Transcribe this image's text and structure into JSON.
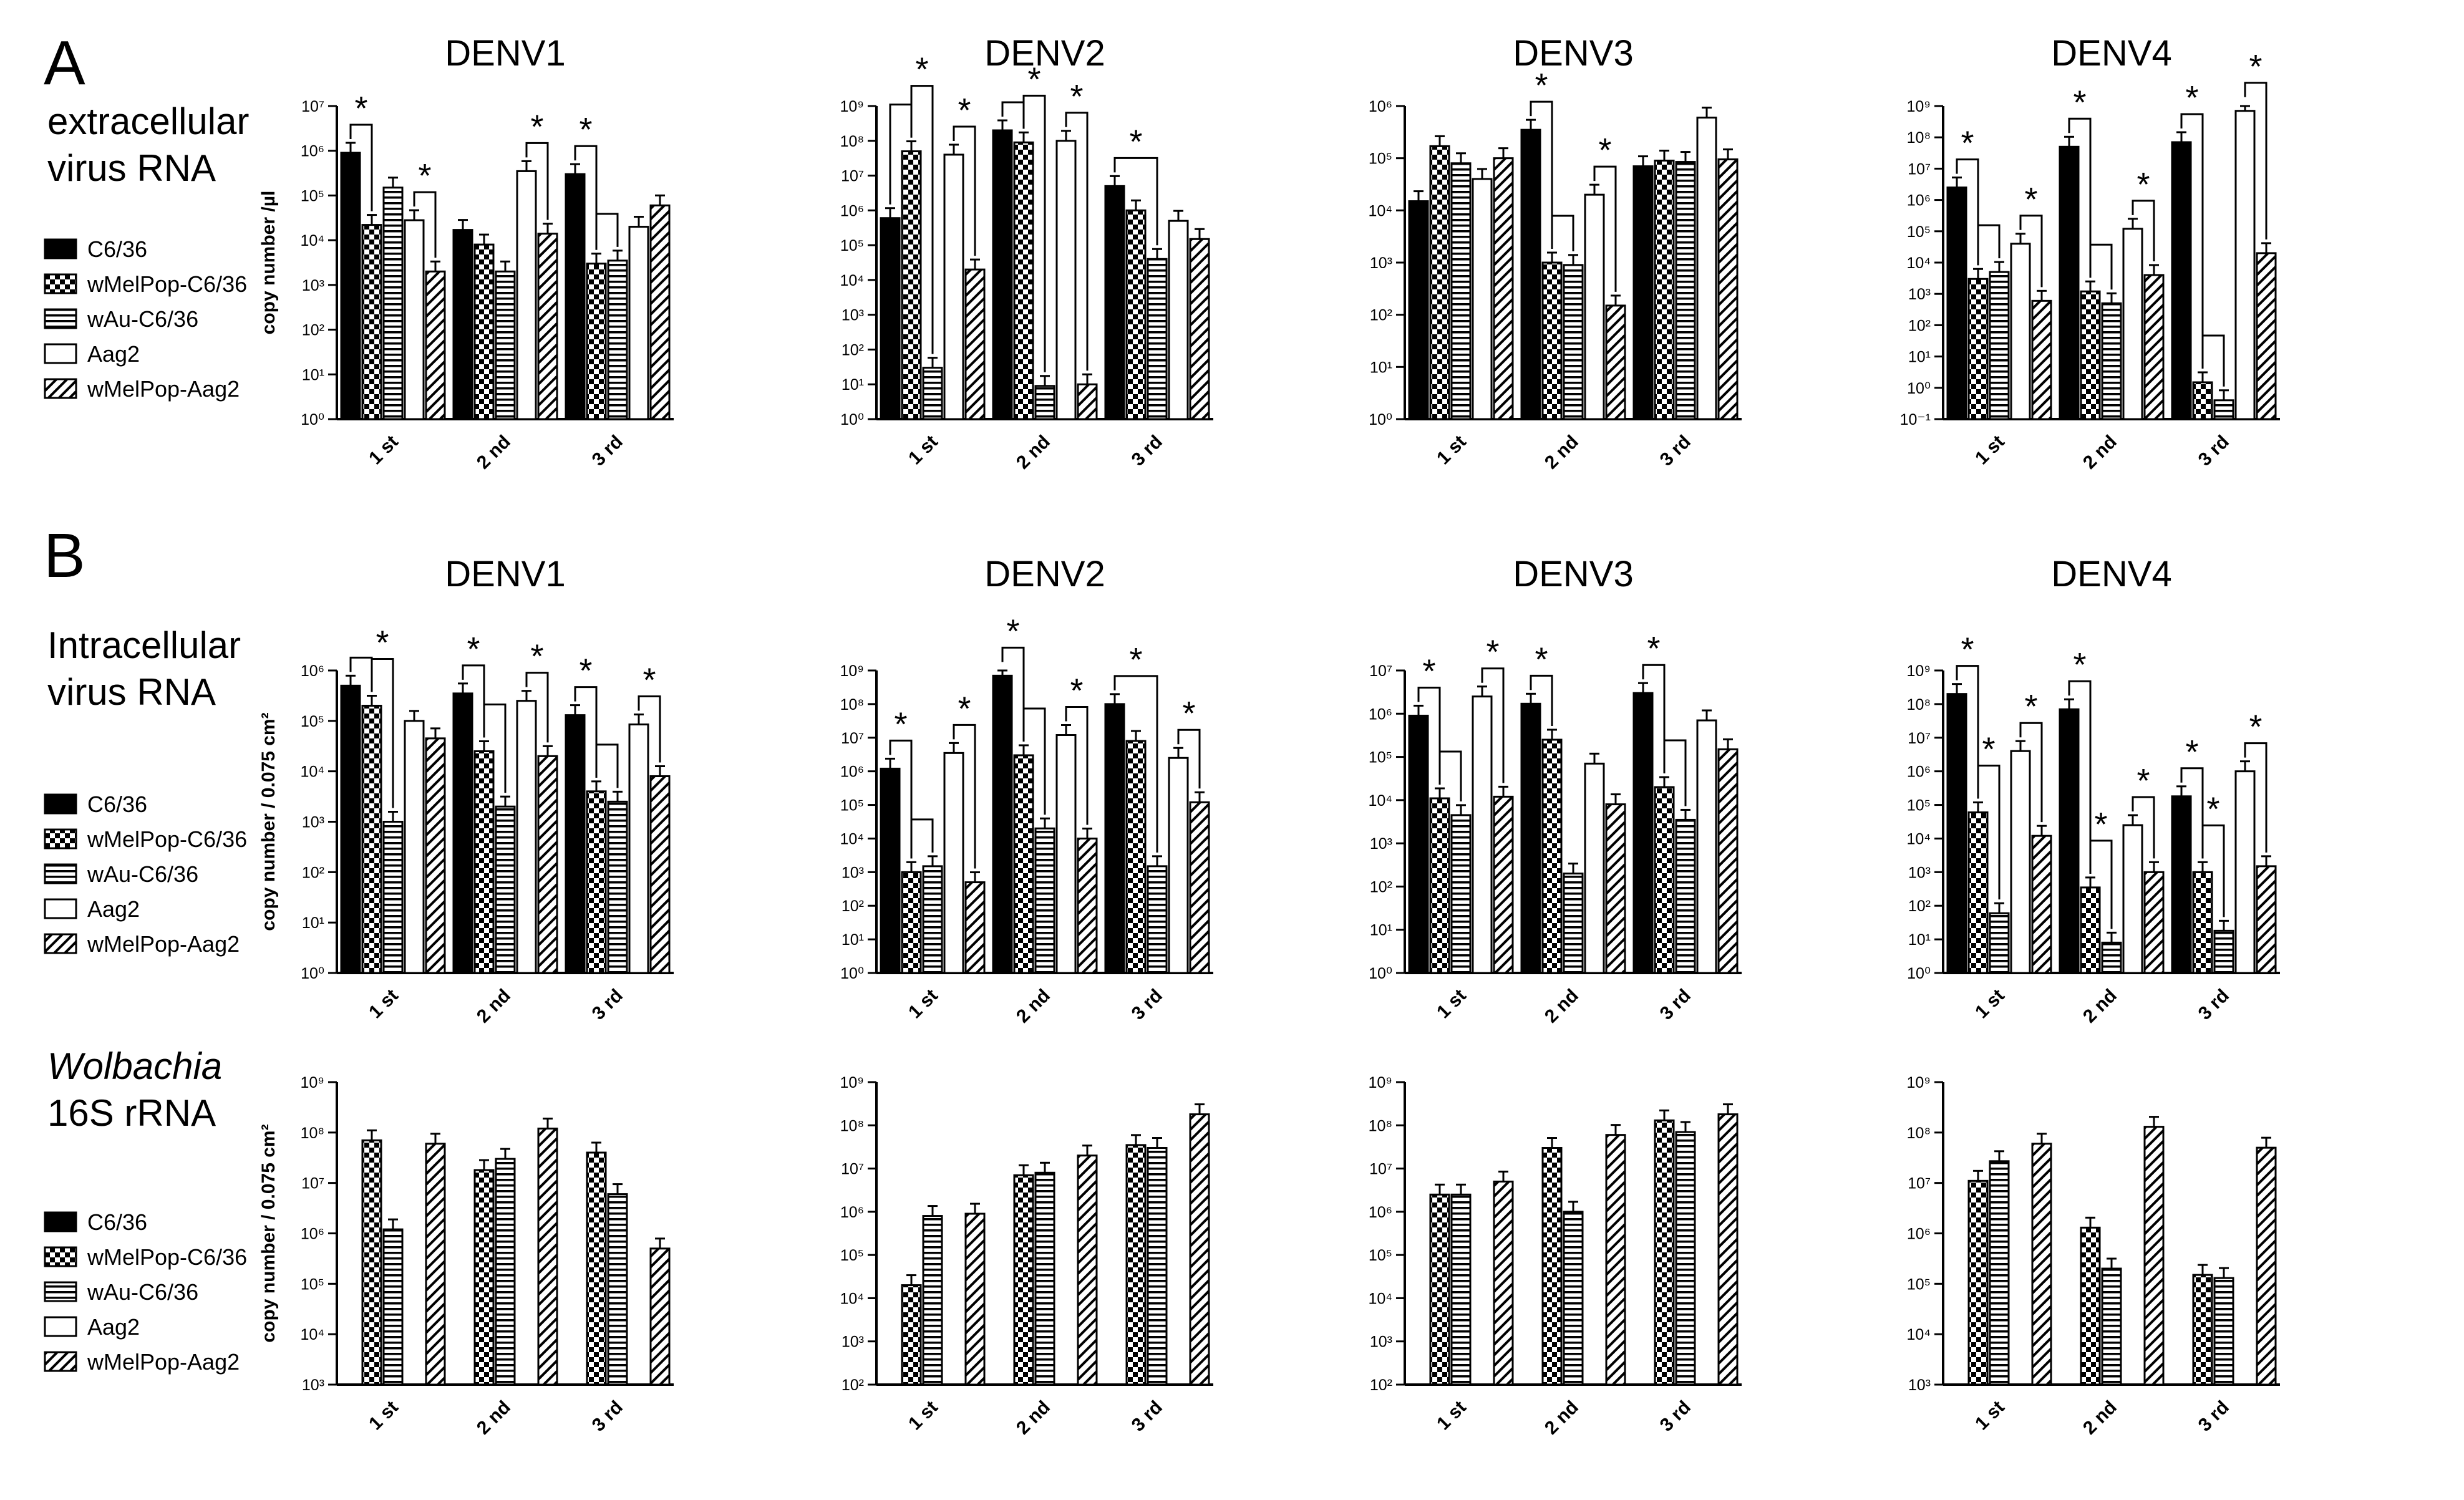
{
  "labels": {
    "panel_a": "A",
    "panel_b": "B",
    "row1_line1": "extracellular",
    "row1_line2": "virus RNA",
    "row2_line1": "Intracellular",
    "row2_line2": "virus RNA",
    "row3_line1": "Wolbachia",
    "row3_line2": "16S rRNA"
  },
  "legend": [
    {
      "label": "C6/36",
      "pattern": "solid"
    },
    {
      "label": "wMelPop-C6/36",
      "pattern": "checker"
    },
    {
      "label": "wAu-C6/36",
      "pattern": "hlines"
    },
    {
      "label": "Aag2",
      "pattern": "open"
    },
    {
      "label": "wMelPop-Aag2",
      "pattern": "diag"
    }
  ],
  "colors": {
    "ink": "#000000",
    "fill_dark": "#000000",
    "fill_open": "#ffffff"
  },
  "chart_data": [
    {
      "type": "bar",
      "title": "DENV1",
      "ylabel": "copy number /µl",
      "ylim_exp": [
        0,
        7
      ],
      "categories": [
        "1 st",
        "2 nd",
        "3 rd"
      ],
      "series": [
        {
          "name": "C6/36",
          "values": [
            900000,
            17000,
            300000
          ]
        },
        {
          "name": "wMelPop-C6/36",
          "values": [
            22000,
            8000,
            3000
          ]
        },
        {
          "name": "wAu-C6/36",
          "values": [
            150000,
            2000,
            3500
          ]
        },
        {
          "name": "Aag2",
          "values": [
            28000,
            350000,
            20000
          ]
        },
        {
          "name": "wMelPop-Aag2",
          "values": [
            2000,
            14000,
            60000
          ]
        }
      ],
      "significance": [
        {
          "group": 0,
          "a": 0,
          "b": 1,
          "level": 0,
          "label": "*"
        },
        {
          "group": 0,
          "a": 3,
          "b": 4,
          "level": 0,
          "label": "*"
        },
        {
          "group": 1,
          "a": 3,
          "b": 4,
          "level": 0,
          "label": "*"
        },
        {
          "group": 2,
          "a": 0,
          "b": 1,
          "level": 0,
          "label": "*"
        },
        {
          "group": 2,
          "a": 1,
          "b": 2,
          "level": 1,
          "label": ""
        }
      ]
    },
    {
      "type": "bar",
      "title": "DENV2",
      "ylabel": "",
      "ylim_exp": [
        0,
        9
      ],
      "categories": [
        "1 st",
        "2 nd",
        "3 rd"
      ],
      "series": [
        {
          "name": "C6/36",
          "values": [
            600000,
            200000000,
            5000000
          ]
        },
        {
          "name": "wMelPop-C6/36",
          "values": [
            50000000,
            90000000,
            1000000
          ]
        },
        {
          "name": "wAu-C6/36",
          "values": [
            30,
            9,
            40000
          ]
        },
        {
          "name": "Aag2",
          "values": [
            40000000,
            100000000,
            500000
          ]
        },
        {
          "name": "wMelPop-Aag2",
          "values": [
            20000,
            10,
            150000
          ]
        }
      ],
      "significance": [
        {
          "group": 0,
          "a": 0,
          "b": 1,
          "level": 1,
          "label": ""
        },
        {
          "group": 0,
          "a": 1,
          "b": 2,
          "level": 2,
          "label": "*"
        },
        {
          "group": 0,
          "a": 3,
          "b": 4,
          "level": 0,
          "label": "*"
        },
        {
          "group": 1,
          "a": 0,
          "b": 1,
          "level": 0,
          "label": ""
        },
        {
          "group": 1,
          "a": 1,
          "b": 2,
          "level": 1,
          "label": "*"
        },
        {
          "group": 1,
          "a": 3,
          "b": 4,
          "level": 0,
          "label": "*"
        },
        {
          "group": 2,
          "a": 0,
          "b": 2,
          "level": 0,
          "label": "*"
        }
      ]
    },
    {
      "type": "bar",
      "title": "DENV3",
      "ylabel": "",
      "ylim_exp": [
        0,
        6
      ],
      "categories": [
        "1 st",
        "2 nd",
        "3 rd"
      ],
      "series": [
        {
          "name": "C6/36",
          "values": [
            15000,
            350000,
            70000
          ]
        },
        {
          "name": "wMelPop-C6/36",
          "values": [
            170000,
            1000,
            90000
          ]
        },
        {
          "name": "wAu-C6/36",
          "values": [
            80000,
            900,
            85000
          ]
        },
        {
          "name": "Aag2",
          "values": [
            40000,
            20000,
            600000
          ]
        },
        {
          "name": "wMelPop-Aag2",
          "values": [
            100000,
            150,
            95000
          ]
        }
      ],
      "significance": [
        {
          "group": 1,
          "a": 0,
          "b": 1,
          "level": 0,
          "label": "*"
        },
        {
          "group": 1,
          "a": 1,
          "b": 2,
          "level": 1,
          "label": ""
        },
        {
          "group": 1,
          "a": 3,
          "b": 4,
          "level": 0,
          "label": "*"
        }
      ]
    },
    {
      "type": "bar",
      "title": "DENV4",
      "ylabel": "",
      "ylim_exp": [
        -1,
        9
      ],
      "categories": [
        "1 st",
        "2 nd",
        "3 rd"
      ],
      "series": [
        {
          "name": "C6/36",
          "values": [
            2500000,
            50000000,
            70000000
          ]
        },
        {
          "name": "wMelPop-C6/36",
          "values": [
            3000,
            1200,
            1.5
          ]
        },
        {
          "name": "wAu-C6/36",
          "values": [
            5000,
            500,
            0.4
          ]
        },
        {
          "name": "Aag2",
          "values": [
            40000,
            120000,
            700000000
          ]
        },
        {
          "name": "wMelPop-Aag2",
          "values": [
            600,
            4000,
            20000
          ]
        }
      ],
      "significance": [
        {
          "group": 0,
          "a": 0,
          "b": 1,
          "level": 0,
          "label": "*"
        },
        {
          "group": 0,
          "a": 1,
          "b": 2,
          "level": 1,
          "label": ""
        },
        {
          "group": 0,
          "a": 3,
          "b": 4,
          "level": 0,
          "label": "*"
        },
        {
          "group": 1,
          "a": 0,
          "b": 1,
          "level": 0,
          "label": "*"
        },
        {
          "group": 1,
          "a": 1,
          "b": 2,
          "level": 1,
          "label": ""
        },
        {
          "group": 1,
          "a": 3,
          "b": 4,
          "level": 0,
          "label": "*"
        },
        {
          "group": 2,
          "a": 0,
          "b": 1,
          "level": 0,
          "label": "*"
        },
        {
          "group": 2,
          "a": 1,
          "b": 2,
          "level": 1,
          "label": ""
        },
        {
          "group": 2,
          "a": 3,
          "b": 4,
          "level": 0,
          "label": "*"
        }
      ]
    },
    {
      "type": "bar",
      "title": "DENV1",
      "ylabel": "copy number / 0.075 cm²",
      "ylim_exp": [
        0,
        6
      ],
      "categories": [
        "1 st",
        "2 nd",
        "3 rd"
      ],
      "series": [
        {
          "name": "C6/36",
          "values": [
            500000,
            350000,
            130000
          ]
        },
        {
          "name": "wMelPop-C6/36",
          "values": [
            200000,
            25000,
            4000
          ]
        },
        {
          "name": "wAu-C6/36",
          "values": [
            1000,
            2000,
            2500
          ]
        },
        {
          "name": "Aag2",
          "values": [
            100000,
            250000,
            85000
          ]
        },
        {
          "name": "wMelPop-Aag2",
          "values": [
            45000,
            20000,
            8000
          ]
        }
      ],
      "significance": [
        {
          "group": 0,
          "a": 0,
          "b": 1,
          "level": 0,
          "label": ""
        },
        {
          "group": 0,
          "a": 1,
          "b": 2,
          "level": 1,
          "label": "*"
        },
        {
          "group": 1,
          "a": 0,
          "b": 1,
          "level": 0,
          "label": "*"
        },
        {
          "group": 1,
          "a": 1,
          "b": 2,
          "level": 1,
          "label": ""
        },
        {
          "group": 1,
          "a": 3,
          "b": 4,
          "level": 0,
          "label": "*"
        },
        {
          "group": 2,
          "a": 0,
          "b": 1,
          "level": 0,
          "label": "*"
        },
        {
          "group": 2,
          "a": 1,
          "b": 2,
          "level": 1,
          "label": ""
        },
        {
          "group": 2,
          "a": 3,
          "b": 4,
          "level": 0,
          "label": "*"
        }
      ]
    },
    {
      "type": "bar",
      "title": "DENV2",
      "ylabel": "",
      "ylim_exp": [
        0,
        9
      ],
      "categories": [
        "1 st",
        "2 nd",
        "3 rd"
      ],
      "series": [
        {
          "name": "C6/36",
          "values": [
            1200000,
            700000000,
            100000000
          ]
        },
        {
          "name": "wMelPop-C6/36",
          "values": [
            1000,
            3000000,
            8000000
          ]
        },
        {
          "name": "wAu-C6/36",
          "values": [
            1500,
            20000,
            1500
          ]
        },
        {
          "name": "Aag2",
          "values": [
            3500000,
            12000000,
            2500000
          ]
        },
        {
          "name": "wMelPop-Aag2",
          "values": [
            500,
            10000,
            120000
          ]
        }
      ],
      "significance": [
        {
          "group": 0,
          "a": 0,
          "b": 1,
          "level": 0,
          "label": "*"
        },
        {
          "group": 0,
          "a": 1,
          "b": 2,
          "level": 1,
          "label": ""
        },
        {
          "group": 0,
          "a": 3,
          "b": 4,
          "level": 0,
          "label": "*"
        },
        {
          "group": 1,
          "a": 0,
          "b": 1,
          "level": 0,
          "label": "*"
        },
        {
          "group": 1,
          "a": 1,
          "b": 2,
          "level": 1,
          "label": ""
        },
        {
          "group": 1,
          "a": 3,
          "b": 4,
          "level": 0,
          "label": "*"
        },
        {
          "group": 2,
          "a": 0,
          "b": 2,
          "level": 0,
          "label": "*"
        },
        {
          "group": 2,
          "a": 3,
          "b": 4,
          "level": 0,
          "label": "*"
        }
      ]
    },
    {
      "type": "bar",
      "title": "DENV3",
      "ylabel": "",
      "ylim_exp": [
        0,
        7
      ],
      "categories": [
        "1 st",
        "2 nd",
        "3 rd"
      ],
      "series": [
        {
          "name": "C6/36",
          "values": [
            900000,
            1700000,
            3000000
          ]
        },
        {
          "name": "wMelPop-C6/36",
          "values": [
            11000,
            250000,
            20000
          ]
        },
        {
          "name": "wAu-C6/36",
          "values": [
            4500,
            200,
            3500
          ]
        },
        {
          "name": "Aag2",
          "values": [
            2500000,
            70000,
            700000
          ]
        },
        {
          "name": "wMelPop-Aag2",
          "values": [
            12000,
            8000,
            150000
          ]
        }
      ],
      "significance": [
        {
          "group": 0,
          "a": 0,
          "b": 1,
          "level": 0,
          "label": "*"
        },
        {
          "group": 0,
          "a": 1,
          "b": 2,
          "level": 1,
          "label": ""
        },
        {
          "group": 0,
          "a": 3,
          "b": 4,
          "level": 0,
          "label": "*"
        },
        {
          "group": 1,
          "a": 0,
          "b": 1,
          "level": 0,
          "label": "*"
        },
        {
          "group": 2,
          "a": 0,
          "b": 1,
          "level": 0,
          "label": "*"
        },
        {
          "group": 2,
          "a": 1,
          "b": 2,
          "level": 1,
          "label": ""
        }
      ]
    },
    {
      "type": "bar",
      "title": "DENV4",
      "ylabel": "",
      "ylim_exp": [
        0,
        9
      ],
      "categories": [
        "1 st",
        "2 nd",
        "3 rd"
      ],
      "series": [
        {
          "name": "C6/36",
          "values": [
            200000000,
            70000000,
            180000
          ]
        },
        {
          "name": "wMelPop-C6/36",
          "values": [
            60000,
            350,
            1000
          ]
        },
        {
          "name": "wAu-C6/36",
          "values": [
            60,
            8,
            18
          ]
        },
        {
          "name": "Aag2",
          "values": [
            4000000,
            25000,
            1000000
          ]
        },
        {
          "name": "wMelPop-Aag2",
          "values": [
            12000,
            1000,
            1500
          ]
        }
      ],
      "significance": [
        {
          "group": 0,
          "a": 0,
          "b": 1,
          "level": 0,
          "label": "*"
        },
        {
          "group": 0,
          "a": 1,
          "b": 2,
          "level": 1,
          "label": "*"
        },
        {
          "group": 0,
          "a": 3,
          "b": 4,
          "level": 0,
          "label": "*"
        },
        {
          "group": 1,
          "a": 0,
          "b": 1,
          "level": 0,
          "label": "*"
        },
        {
          "group": 1,
          "a": 1,
          "b": 2,
          "level": 1,
          "label": "*"
        },
        {
          "group": 1,
          "a": 3,
          "b": 4,
          "level": 0,
          "label": "*"
        },
        {
          "group": 2,
          "a": 0,
          "b": 1,
          "level": 0,
          "label": "*"
        },
        {
          "group": 2,
          "a": 1,
          "b": 2,
          "level": 1,
          "label": "*"
        },
        {
          "group": 2,
          "a": 3,
          "b": 4,
          "level": 0,
          "label": "*"
        }
      ]
    },
    {
      "type": "bar",
      "title": "",
      "ylabel": "copy number / 0.075 cm²",
      "ylim_exp": [
        3,
        9
      ],
      "categories": [
        "1 st",
        "2 nd",
        "3 rd"
      ],
      "series": [
        {
          "name": "C6/36",
          "values": [
            null,
            null,
            null
          ]
        },
        {
          "name": "wMelPop-C6/36",
          "values": [
            70000000,
            18000000,
            40000000
          ]
        },
        {
          "name": "wAu-C6/36",
          "values": [
            1200000,
            30000000,
            6000000
          ]
        },
        {
          "name": "Aag2",
          "values": [
            null,
            null,
            null
          ]
        },
        {
          "name": "wMelPop-Aag2",
          "values": [
            60000000,
            120000000,
            500000
          ]
        }
      ],
      "significance": []
    },
    {
      "type": "bar",
      "title": "",
      "ylabel": "",
      "ylim_exp": [
        2,
        9
      ],
      "categories": [
        "1 st",
        "2 nd",
        "3 rd"
      ],
      "series": [
        {
          "name": "C6/36",
          "values": [
            null,
            null,
            null
          ]
        },
        {
          "name": "wMelPop-C6/36",
          "values": [
            20000,
            7000000,
            35000000
          ]
        },
        {
          "name": "wAu-C6/36",
          "values": [
            800000,
            8000000,
            30000000
          ]
        },
        {
          "name": "Aag2",
          "values": [
            null,
            null,
            null
          ]
        },
        {
          "name": "wMelPop-Aag2",
          "values": [
            900000,
            20000000,
            180000000
          ]
        }
      ],
      "significance": []
    },
    {
      "type": "bar",
      "title": "",
      "ylabel": "",
      "ylim_exp": [
        2,
        9
      ],
      "categories": [
        "1 st",
        "2 nd",
        "3 rd"
      ],
      "series": [
        {
          "name": "C6/36",
          "values": [
            null,
            null,
            null
          ]
        },
        {
          "name": "wMelPop-C6/36",
          "values": [
            2500000,
            30000000,
            130000000
          ]
        },
        {
          "name": "wAu-C6/36",
          "values": [
            2500000,
            1000000,
            70000000
          ]
        },
        {
          "name": "Aag2",
          "values": [
            null,
            null,
            null
          ]
        },
        {
          "name": "wMelPop-Aag2",
          "values": [
            5000000,
            60000000,
            180000000
          ]
        }
      ],
      "significance": []
    },
    {
      "type": "bar",
      "title": "",
      "ylabel": "",
      "ylim_exp": [
        3,
        9
      ],
      "categories": [
        "1 st",
        "2 nd",
        "3 rd"
      ],
      "series": [
        {
          "name": "C6/36",
          "values": [
            null,
            null,
            null
          ]
        },
        {
          "name": "wMelPop-C6/36",
          "values": [
            11000000,
            1300000,
            150000
          ]
        },
        {
          "name": "wAu-C6/36",
          "values": [
            27000000,
            200000,
            130000
          ]
        },
        {
          "name": "Aag2",
          "values": [
            null,
            null,
            null
          ]
        },
        {
          "name": "wMelPop-Aag2",
          "values": [
            60000000,
            130000000,
            50000000
          ]
        }
      ],
      "significance": []
    }
  ]
}
